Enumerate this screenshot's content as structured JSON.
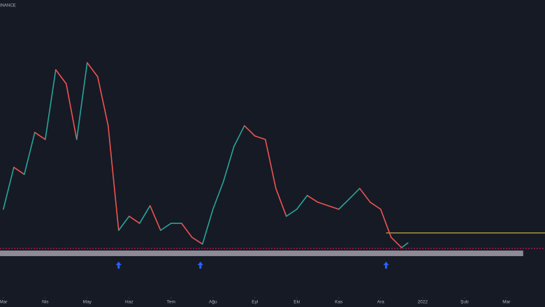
{
  "chart_data": {
    "type": "line",
    "source": "INANCE",
    "xticks": [
      {
        "value": 0,
        "label": "Mar"
      },
      {
        "value": 1,
        "label": "Nis"
      },
      {
        "value": 2,
        "label": "May"
      },
      {
        "value": 3,
        "label": "Haz"
      },
      {
        "value": 4,
        "label": "Tem"
      },
      {
        "value": 5,
        "label": "Ağu"
      },
      {
        "value": 6,
        "label": "Eyl"
      },
      {
        "value": 7,
        "label": "Eki"
      },
      {
        "value": 8,
        "label": "Kas"
      },
      {
        "value": 9,
        "label": "Ara"
      },
      {
        "value": 10,
        "label": "2022"
      },
      {
        "value": 11,
        "label": "Şub"
      },
      {
        "value": 12,
        "label": "Mar"
      }
    ],
    "xlim": [
      -0.08,
      12.92
    ],
    "ylim": [
      0,
      100
    ],
    "up_color": "#26a69a",
    "down_color": "#ef5350",
    "series": [
      {
        "x": [
          0,
          0.25,
          0.5,
          0.75,
          1,
          1.25,
          1.5,
          1.75,
          2,
          2.25,
          2.5,
          2.75,
          3,
          3.25,
          3.5,
          3.75,
          4,
          4.25,
          4.5,
          4.75,
          5,
          5.25,
          5.5,
          5.75,
          6,
          6.25,
          6.5,
          6.75,
          7,
          7.25,
          7.5,
          7.75,
          8,
          8.25,
          8.5,
          8.75,
          9,
          9.25,
          9.5,
          9.65
        ],
        "values": [
          28.6,
          42.9,
          40.5,
          54.8,
          52.4,
          76.2,
          71.4,
          52.4,
          78.6,
          73.8,
          57.1,
          21.4,
          26.2,
          23.8,
          29.8,
          21.4,
          23.8,
          23.8,
          19.0,
          16.7,
          28.6,
          38.1,
          50.0,
          57.1,
          53.6,
          52.4,
          35.7,
          26.2,
          28.6,
          33.3,
          31.0,
          29.8,
          28.6,
          32.1,
          35.7,
          31.0,
          28.6,
          19.0,
          15.5,
          17.1
        ]
      }
    ],
    "resistance": {
      "value": 20.5,
      "from": 9.13,
      "color": "#f0d050"
    },
    "support_line": {
      "value": 15.2,
      "color": "#c2185b"
    },
    "support_zone": {
      "range": [
        12.6,
        14.5
      ],
      "to": 12.4,
      "color": "#9b98a3"
    },
    "markers_x": [
      2.75,
      4.7,
      9.13
    ],
    "marker_color": "#2962ff"
  }
}
